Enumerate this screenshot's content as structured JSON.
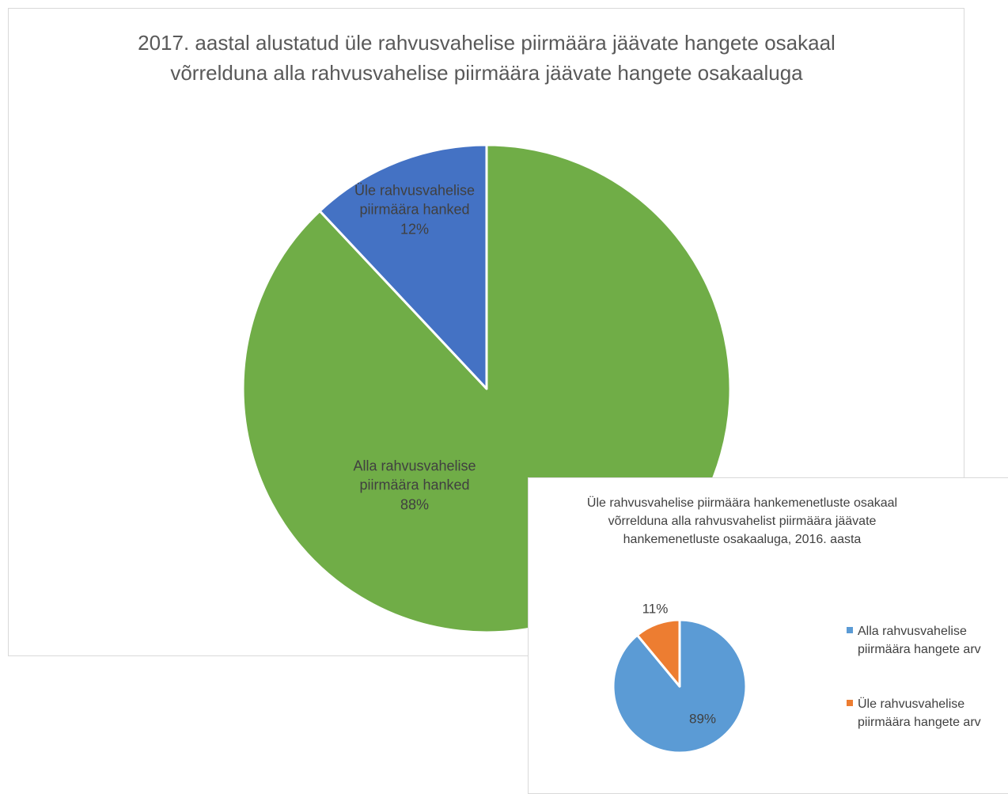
{
  "chart_data": [
    {
      "type": "pie",
      "title": "2017. aastal alustatud üle rahvusvahelise piirmäära jäävate hangete osakaal võrrelduna alla rahvusvahelise piirmäära jäävate hangete osakaaluga",
      "categories": [
        "Alla rahvusvahelise piirmäära hanked",
        "Üle rahvusvahelise piirmäära hanked"
      ],
      "values": [
        88,
        12
      ],
      "value_labels": [
        "88%",
        "12%"
      ],
      "colors": [
        "#70ad47",
        "#4472c4"
      ]
    },
    {
      "type": "pie",
      "title": "Üle rahvusvahelise piirmäära hankemenetluste osakaal võrrelduna alla rahvusvahelist piirmäära jäävate hankemenetluste osakaaluga, 2016. aasta",
      "categories": [
        "Alla rahvusvahelise piirmäära hangete arv",
        "Üle rahvusvahelise piirmäära hangete arv"
      ],
      "values": [
        89,
        11
      ],
      "value_labels": [
        "89%",
        "11%"
      ],
      "colors": [
        "#5b9bd5",
        "#ed7d31"
      ],
      "legend": "right"
    }
  ]
}
